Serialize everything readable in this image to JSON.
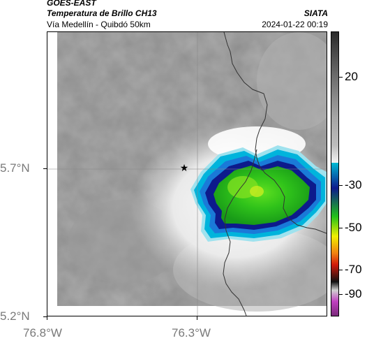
{
  "header": {
    "satellite": "GOES-EAST",
    "product": "Temperatura de Brillo CH13",
    "organization": "SIATA",
    "region": "Vía Medellín - Quibdó 50km",
    "timestamp": "2024-01-22 00:19"
  },
  "map": {
    "lat_ticks": [
      "5.7°N",
      "5.2°N"
    ],
    "lon_ticks": [
      "76.8°W",
      "76.3°W"
    ],
    "marker_icon": "star-icon",
    "border_color": "#333333"
  },
  "colorbar": {
    "tick_labels": [
      "20",
      "-30",
      "-50",
      "-70",
      "-90"
    ],
    "colors": {
      "warm_top": "#2a2a2a",
      "mid_gray": "#bdbdbd",
      "cyan": "#00bcd4",
      "blue": "#0d1a8c",
      "green": "#22c11a",
      "yellow": "#f0f000",
      "red": "#d21a0a",
      "black": "#111111",
      "magenta": "#c040c0"
    }
  }
}
